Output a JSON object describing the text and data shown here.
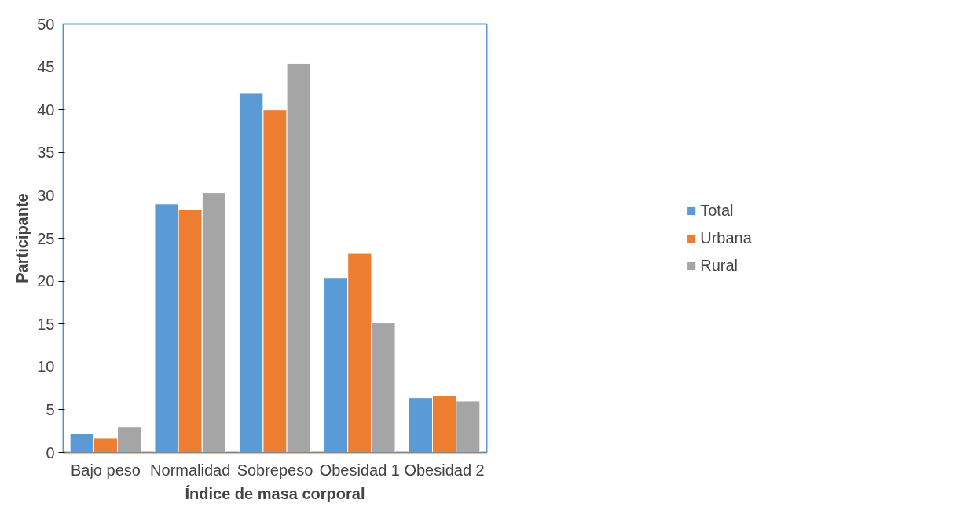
{
  "chart_data": {
    "type": "bar",
    "xlabel": "Índice de masa corporal",
    "ylabel": "Participante",
    "categories": [
      "Bajo peso",
      "Normalidad",
      "Sobrepeso",
      "Obesidad 1",
      "Obesidad 2"
    ],
    "series": [
      {
        "name": "Total",
        "color": "#5b9bd5",
        "values": [
          2.2,
          29.0,
          41.9,
          20.4,
          6.4
        ]
      },
      {
        "name": "Urbana",
        "color": "#ed7d31",
        "values": [
          1.7,
          28.3,
          40.0,
          23.3,
          6.6
        ]
      },
      {
        "name": "Rural",
        "color": "#a5a5a5",
        "values": [
          3.0,
          30.3,
          45.4,
          15.1,
          6.0
        ]
      }
    ],
    "ylim": [
      0,
      50
    ],
    "yticks": [
      0,
      5,
      10,
      15,
      20,
      25,
      30,
      35,
      40,
      45,
      50
    ],
    "grid": false,
    "legend": "right"
  }
}
